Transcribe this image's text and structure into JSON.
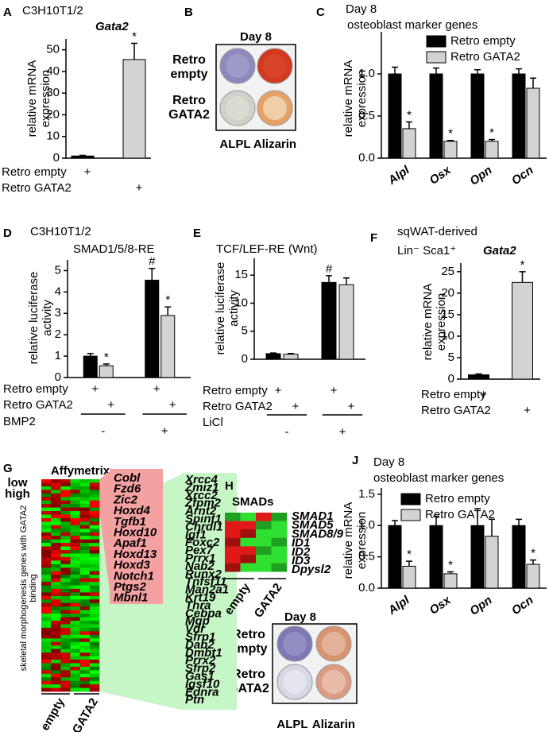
{
  "chart_data": [
    {
      "panel": "A",
      "type": "bar",
      "title": "C3H10T1/2",
      "gene": "Gata2",
      "ylabel": "relative mRNA expression",
      "categories": [
        null
      ],
      "series": [
        {
          "color": "#000000",
          "values": [
            1
          ],
          "errors": [
            0.3
          ],
          "markers": [
            null
          ]
        },
        {
          "color": "#d3d3d3",
          "values": [
            45.5
          ],
          "errors": [
            7.5
          ],
          "markers": [
            "*"
          ]
        }
      ],
      "ylim": [
        0,
        55
      ],
      "yticks": [
        0,
        10,
        20,
        30,
        40,
        50
      ],
      "condition_rows": [
        {
          "label": "Retro empty",
          "signs": [
            "+",
            null
          ]
        },
        {
          "label": "Retro GATA2",
          "signs": [
            null,
            "+"
          ]
        }
      ]
    },
    {
      "panel": "C",
      "type": "bar",
      "title": "Day 8",
      "subtitle": "osteoblast marker genes",
      "ylabel": "relative mRNA expression",
      "categories": [
        "Alpl",
        "Osx",
        "Opn",
        "Ocn"
      ],
      "series": [
        {
          "name": "Retro empty",
          "color": "#000000",
          "values": [
            1,
            1,
            1,
            1
          ],
          "errors": [
            0.08,
            0.07,
            0.05,
            0.06
          ],
          "markers": [
            null,
            null,
            null,
            null
          ]
        },
        {
          "name": "Retro GATA2",
          "color": "#d3d3d3",
          "values": [
            0.35,
            0.2,
            0.2,
            0.83
          ],
          "errors": [
            0.08,
            0.01,
            0.02,
            0.12
          ],
          "markers": [
            "*",
            "*",
            "*",
            null
          ]
        }
      ],
      "ylim": [
        0,
        1.5
      ],
      "yticks": [
        {
          "value": 0,
          "label": "0.0"
        },
        0.5,
        {
          "value": 1,
          "label": "1.0"
        }
      ]
    },
    {
      "panel": "D",
      "type": "bar",
      "title": "C3H10T1/2",
      "subtitle": "SMAD1/5/8-RE",
      "ylabel": "relative luciferase activity",
      "categories": [
        null,
        null
      ],
      "series": [
        {
          "color": "#000000",
          "values": [
            1,
            4.55
          ],
          "errors": [
            0.12,
            0.55
          ],
          "markers": [
            null,
            "#"
          ]
        },
        {
          "color": "#d3d3d3",
          "values": [
            0.55,
            2.9
          ],
          "errors": [
            0.08,
            0.4
          ],
          "markers": [
            "*",
            "*"
          ]
        }
      ],
      "ylim": [
        0,
        5.5
      ],
      "yticks": [
        0,
        1,
        2,
        3,
        4,
        5
      ],
      "condition_rows": [
        {
          "label": "Retro empty",
          "signs": [
            "+",
            null,
            "+",
            null
          ]
        },
        {
          "label": "Retro GATA2",
          "signs": [
            null,
            "+",
            null,
            "+"
          ]
        }
      ],
      "group_row": {
        "label": "BMP2",
        "signs": [
          "-",
          "+"
        ]
      }
    },
    {
      "panel": "E",
      "type": "bar",
      "subtitle": "TCF/LEF-RE (Wnt)",
      "ylabel": "relative luciferase activity",
      "categories": [
        null,
        null
      ],
      "series": [
        {
          "color": "#000000",
          "values": [
            1,
            13.7
          ],
          "errors": [
            0.12,
            1.2
          ],
          "markers": [
            null,
            "#"
          ]
        },
        {
          "color": "#d3d3d3",
          "values": [
            0.9,
            13.3
          ],
          "errors": [
            0.12,
            1.2
          ],
          "markers": [
            null,
            null
          ]
        }
      ],
      "ylim": [
        0,
        18
      ],
      "yticks": [
        0,
        5,
        10,
        15
      ],
      "condition_rows": [
        {
          "label": "Retro empty",
          "signs": [
            "+",
            null,
            "+",
            null
          ]
        },
        {
          "label": "Retro GATA2",
          "signs": [
            null,
            "+",
            null,
            "+"
          ]
        }
      ],
      "group_row": {
        "label": "LiCl",
        "signs": [
          "-",
          "+"
        ]
      }
    },
    {
      "panel": "F",
      "type": "bar",
      "title": "sqWAT-derived",
      "subtitle": "Lin⁻ Sca1⁺",
      "gene": "Gata2",
      "ylabel": "relative mRNA expression",
      "categories": [
        null
      ],
      "series": [
        {
          "color": "#000000",
          "values": [
            1
          ],
          "errors": [
            0.2
          ],
          "markers": [
            null
          ]
        },
        {
          "color": "#d3d3d3",
          "values": [
            22.5
          ],
          "errors": [
            2.5
          ],
          "markers": [
            "*"
          ]
        }
      ],
      "ylim": [
        0,
        27
      ],
      "yticks": [
        0,
        5,
        10,
        15,
        20,
        25
      ],
      "condition_rows": [
        {
          "label": "Retro empty",
          "signs": [
            "+",
            null
          ]
        },
        {
          "label": "Retro GATA2",
          "signs": [
            null,
            "+"
          ]
        }
      ]
    },
    {
      "panel": "J",
      "type": "bar",
      "title": "Day 8",
      "subtitle": "osteoblast marker genes",
      "ylabel": "relative mRNA expression",
      "categories": [
        "Alpl",
        "Osx",
        "Opn",
        "Ocn"
      ],
      "series": [
        {
          "name": "Retro empty",
          "color": "#000000",
          "values": [
            1,
            1,
            1,
            1
          ],
          "errors": [
            0.08,
            0.15,
            0.27,
            0.1
          ],
          "markers": [
            null,
            null,
            null,
            null
          ]
        },
        {
          "name": "Retro GATA2",
          "color": "#d3d3d3",
          "values": [
            0.35,
            0.23,
            0.83,
            0.38
          ],
          "errors": [
            0.08,
            0.03,
            0.27,
            0.07
          ],
          "markers": [
            "*",
            "*",
            null,
            "*"
          ]
        }
      ],
      "ylim": [
        0,
        1.6
      ],
      "yticks": [
        {
          "value": 0,
          "label": "0.0"
        },
        0.5,
        {
          "value": 1,
          "label": "1.0"
        },
        1.5
      ]
    }
  ],
  "plates": [
    {
      "panel": "B",
      "title": "Day 8",
      "rows": [
        "Retro empty",
        "Retro GATA2"
      ],
      "columns": [
        "ALPL",
        "Alizarin"
      ]
    },
    {
      "panel": "I",
      "title": "Day 8",
      "rows": [
        "Retro empty",
        "Retro GATA2"
      ],
      "columns": [
        "ALPL",
        "Alizarin"
      ]
    }
  ],
  "heatmaps": [
    {
      "panel": "G",
      "title": "Affymetrix",
      "legend": [
        "low",
        "high"
      ],
      "ylabel": "skeletal morphogenesis genes with GATA2 binding",
      "columns": [
        "empty",
        "GATA2"
      ],
      "red_genes": [
        "Cobl",
        "Fzd6",
        "Zic2",
        "Hoxd4",
        "Tgfb1",
        "Hoxd10",
        "Apaf1",
        "Hoxd13",
        "Hoxd3",
        "Notch1",
        "Ptgs2",
        "Mbnl1"
      ],
      "green_genes": [
        "Xrcc4",
        "Zmiz1",
        "Xrcc2",
        "Zfpm2",
        "Arnt2",
        "Spint1",
        "Chrdl1",
        "Igf1",
        "Foxc2",
        "Pex7",
        "Prrx1",
        "Nab2",
        "Runx2",
        "Tnfsf11",
        "Man2a1",
        "Krt19",
        "Thra",
        "Cebpa",
        "Mgp",
        "Vdr",
        "Sfrp1",
        "Dab2",
        "Dmbt1",
        "Prrx2",
        "Sfrp2",
        "Gas1",
        "Igsf10",
        "Ednra",
        "Ptn"
      ]
    },
    {
      "panel": "H",
      "title": "SMADs",
      "columns": [
        "empty",
        "GATA2"
      ],
      "genes": [
        "SMAD1",
        "SMAD5",
        "SMAD8/9",
        "ID1",
        "ID2",
        "ID3",
        "Dpysl2"
      ]
    }
  ]
}
